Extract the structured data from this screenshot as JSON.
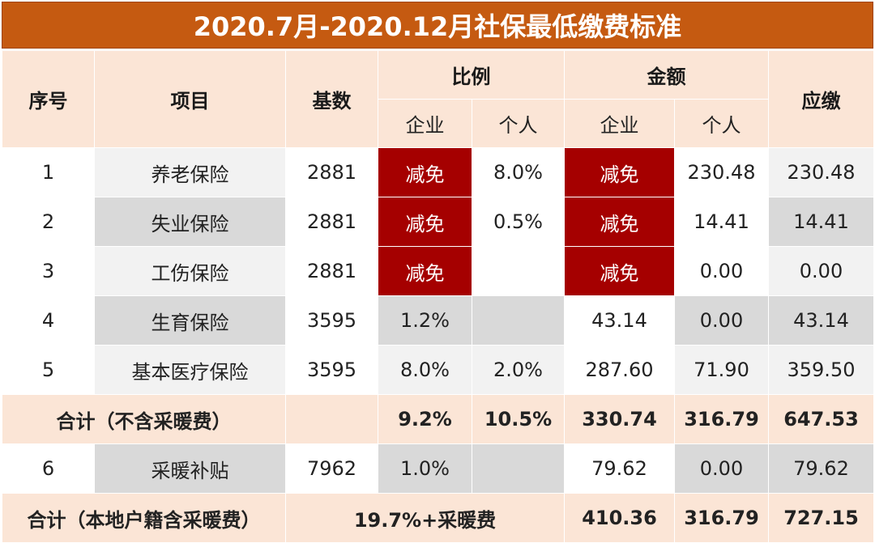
{
  "title": "2020.7月-2020.12月社保最低缴费标准",
  "headers": {
    "seq": "序号",
    "item": "项目",
    "base": "基数",
    "ratio": "比例",
    "amount": "金额",
    "due": "应缴",
    "enterprise": "企业",
    "personal": "个人"
  },
  "rows": [
    {
      "seq": "1",
      "item": "养老保险",
      "base": "2881",
      "ratio_ent": "减免",
      "ratio_per": "8.0%",
      "amt_ent": "减免",
      "amt_per": "230.48",
      "due": "230.48"
    },
    {
      "seq": "2",
      "item": "失业保险",
      "base": "2881",
      "ratio_ent": "减免",
      "ratio_per": "0.5%",
      "amt_ent": "减免",
      "amt_per": "14.41",
      "due": "14.41"
    },
    {
      "seq": "3",
      "item": "工伤保险",
      "base": "2881",
      "ratio_ent": "减免",
      "ratio_per": "",
      "amt_ent": "减免",
      "amt_per": "0.00",
      "due": "0.00"
    },
    {
      "seq": "4",
      "item": "生育保险",
      "base": "3595",
      "ratio_ent": "1.2%",
      "ratio_per": "",
      "amt_ent": "43.14",
      "amt_per": "0.00",
      "due": "43.14"
    },
    {
      "seq": "5",
      "item": "基本医疗保险",
      "base": "3595",
      "ratio_ent": "8.0%",
      "ratio_per": "2.0%",
      "amt_ent": "287.60",
      "amt_per": "71.90",
      "due": "359.50"
    }
  ],
  "subtotal": {
    "label": "合计（不含采暖费）",
    "ratio_ent": "9.2%",
    "ratio_per": "10.5%",
    "amt_ent": "330.74",
    "amt_per": "316.79",
    "due": "647.53"
  },
  "heating": {
    "seq": "6",
    "item": "采暖补贴",
    "base": "7962",
    "ratio_ent": "1.0%",
    "ratio_per": "",
    "amt_ent": "79.62",
    "amt_per": "0.00",
    "due": "79.62"
  },
  "total": {
    "label": "合计（本地户籍含采暖费）",
    "ratio": "19.7%+采暖费",
    "amt_ent": "410.36",
    "amt_per": "316.79",
    "due": "727.15"
  },
  "colors": {
    "title_bg": "#c55a11",
    "header_bg": "#fbe5d6",
    "exempt_bg": "#a50000",
    "row_light": "#f2f2f2",
    "row_dark": "#d9d9d9"
  }
}
